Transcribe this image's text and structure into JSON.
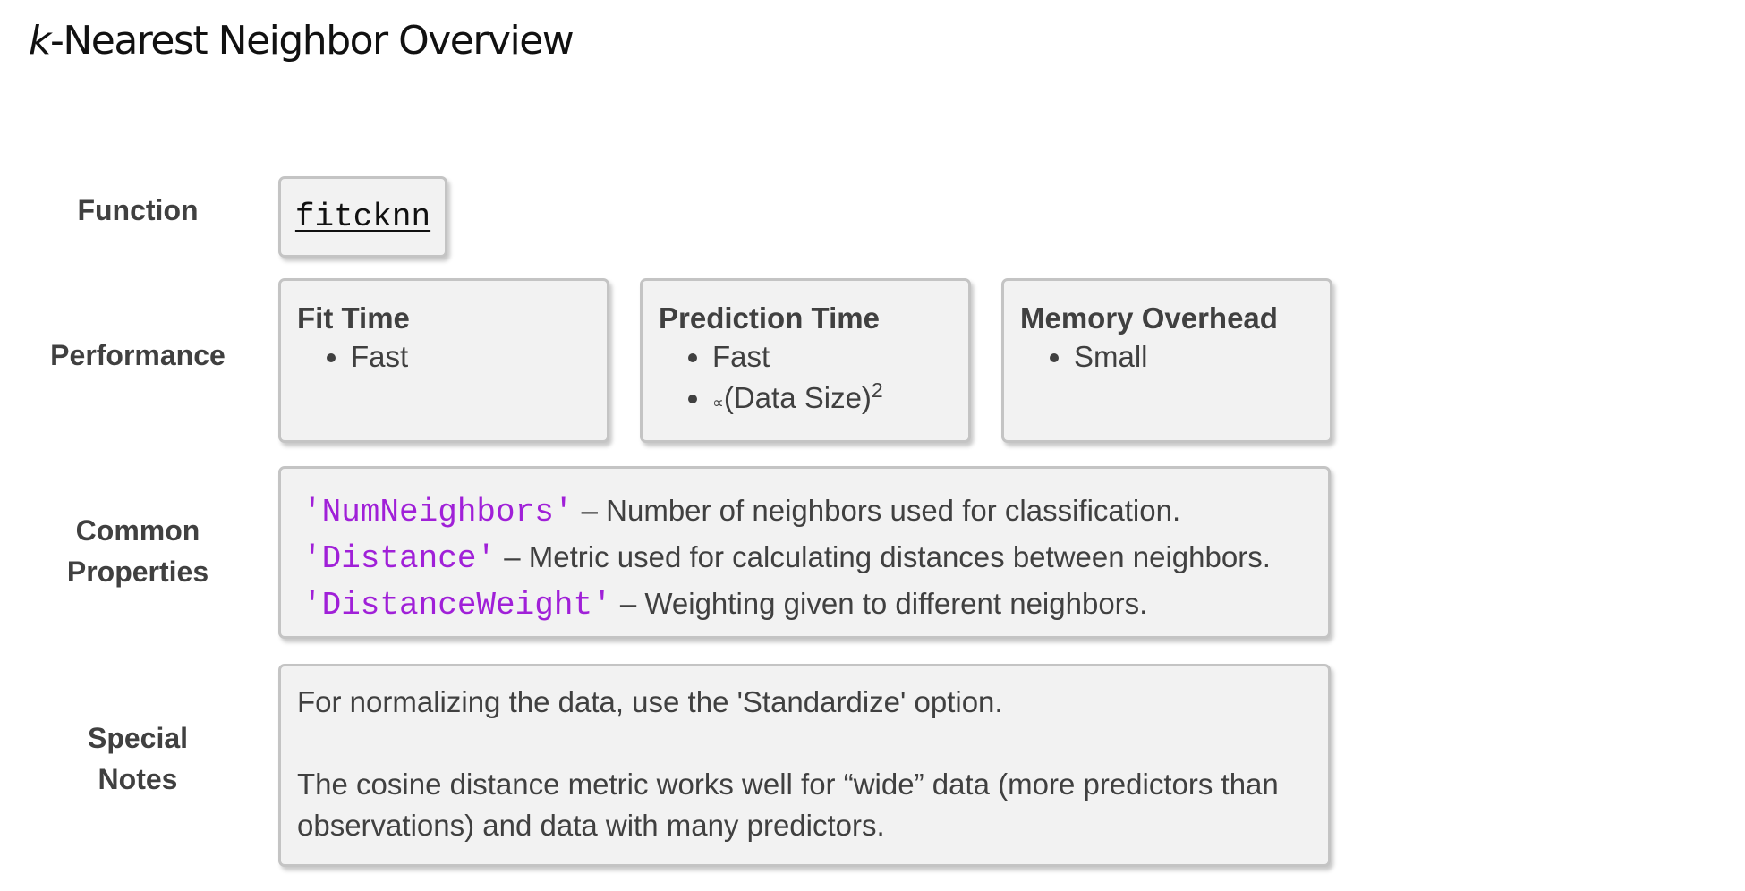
{
  "title": {
    "italic_part": "k",
    "rest": "-Nearest Neighbor Overview"
  },
  "rows": {
    "function_label": "Function",
    "performance_label": "Performance",
    "properties_label_line1": "Common",
    "properties_label_line2": "Properties",
    "notes_label_line1": "Special",
    "notes_label_line2": "Notes"
  },
  "function": {
    "name": "fitcknn"
  },
  "performance": [
    {
      "heading": "Fit Time",
      "bullets": [
        "Fast"
      ]
    },
    {
      "heading": "Prediction Time",
      "bullets": [
        "Fast"
      ],
      "proportional_symbol": "∝",
      "proportional_text": "(Data Size)",
      "proportional_exponent": "2"
    },
    {
      "heading": "Memory Overhead",
      "bullets": [
        "Small"
      ]
    }
  ],
  "properties": [
    {
      "name": "'NumNeighbors'",
      "description": " – Number of neighbors used for classification."
    },
    {
      "name": "'Distance'",
      "description": " – Metric used for calculating distances between neighbors."
    },
    {
      "name": "'DistanceWeight'",
      "description": " – Weighting given to different neighbors."
    }
  ],
  "notes": [
    "For normalizing the data, use the 'Standardize' option.",
    "The cosine distance metric works well for “wide” data (more predictors than observations) and data with many predictors."
  ],
  "colors": {
    "property_name": "#a020d8",
    "text": "#404040",
    "box_background": "#f2f2f2",
    "box_border": "#c4c4c4"
  }
}
